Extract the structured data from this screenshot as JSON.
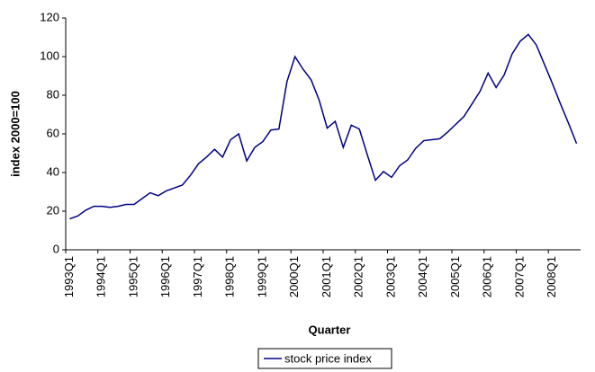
{
  "chart_data": {
    "type": "line",
    "xlabel": "Quarter",
    "ylabel": "index 2000=100",
    "categories": [
      "1993Q1",
      null,
      null,
      null,
      "1994Q1",
      null,
      null,
      null,
      "1995Q1",
      null,
      null,
      null,
      "1996Q1",
      null,
      null,
      null,
      "1997Q1",
      null,
      null,
      null,
      "1998Q1",
      null,
      null,
      null,
      "1999Q1",
      null,
      null,
      null,
      "2000Q1",
      null,
      null,
      null,
      "2001Q1",
      null,
      null,
      null,
      "2002Q1",
      null,
      null,
      null,
      "2003Q1",
      null,
      null,
      null,
      "2004Q1",
      null,
      null,
      null,
      "2005Q1",
      null,
      null,
      null,
      "2006Q1",
      null,
      null,
      null,
      "2007Q1",
      null,
      null,
      null,
      "2008Q1",
      null,
      null,
      null
    ],
    "series": [
      {
        "name": "stock price index",
        "color": "#000080",
        "values": [
          16,
          17.5,
          20.5,
          22.5,
          22.5,
          22,
          22.5,
          23.5,
          23.5,
          26.5,
          29.5,
          28,
          30.5,
          32,
          33.5,
          38.5,
          44.5,
          48,
          52,
          48,
          57,
          60,
          46,
          53,
          56,
          62,
          62.5,
          87,
          100,
          93.5,
          88,
          77.5,
          63,
          66.5,
          53,
          64.5,
          62.5,
          49,
          36,
          40.5,
          37.5,
          43.5,
          46.5,
          52.5,
          56.5,
          57,
          57.5,
          61,
          65,
          69,
          75.5,
          82,
          91.5,
          84,
          90.5,
          101.5,
          108,
          111.5,
          106,
          96,
          86,
          75.5,
          65.5,
          55
        ]
      }
    ],
    "ylim": [
      0,
      120
    ],
    "yticks": [
      0,
      20,
      40,
      60,
      80,
      100,
      120
    ],
    "grid": false,
    "legend": "bottom"
  }
}
